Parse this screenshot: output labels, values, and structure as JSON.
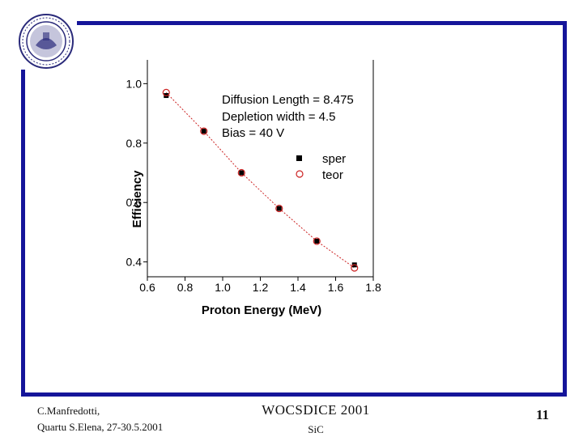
{
  "chart_data": {
    "type": "scatter",
    "xlabel": "Proton Energy (MeV)",
    "ylabel": "Efficiency",
    "xlim": [
      0.6,
      1.8
    ],
    "ylim": [
      0.35,
      1.08
    ],
    "x_ticks": [
      "0.6",
      "0.8",
      "1.0",
      "1.2",
      "1.4",
      "1.6",
      "1.8"
    ],
    "y_ticks": [
      "0.4",
      "0.6",
      "0.8",
      "1.0"
    ],
    "annotations": [
      "Diffusion Length = 8.475",
      "Depletion width  = 4.5",
      "Bias = 40 V"
    ],
    "legend_position": "top-right",
    "series": [
      {
        "name": "sper",
        "marker": "filled-square",
        "color": "#000000",
        "x": [
          0.7,
          0.9,
          1.1,
          1.3,
          1.5,
          1.7
        ],
        "y": [
          0.96,
          0.84,
          0.7,
          0.58,
          0.47,
          0.39
        ]
      },
      {
        "name": "teor",
        "marker": "open-circle",
        "color": "#cc2222",
        "line": "dashed",
        "x": [
          0.7,
          0.9,
          1.1,
          1.3,
          1.5,
          1.7
        ],
        "y": [
          0.97,
          0.84,
          0.7,
          0.58,
          0.47,
          0.38
        ]
      }
    ],
    "grid": false
  },
  "footer": {
    "author": "C.Manfredotti,",
    "venue": "Quartu S.Elena, 27-30.5.2001",
    "title": "WOCSDICE 2001",
    "subtitle": "SiC",
    "page_number": "11"
  },
  "colors": {
    "frame": "#15159a",
    "fit_line": "#cc2222",
    "seal": "#2a2a7a"
  }
}
